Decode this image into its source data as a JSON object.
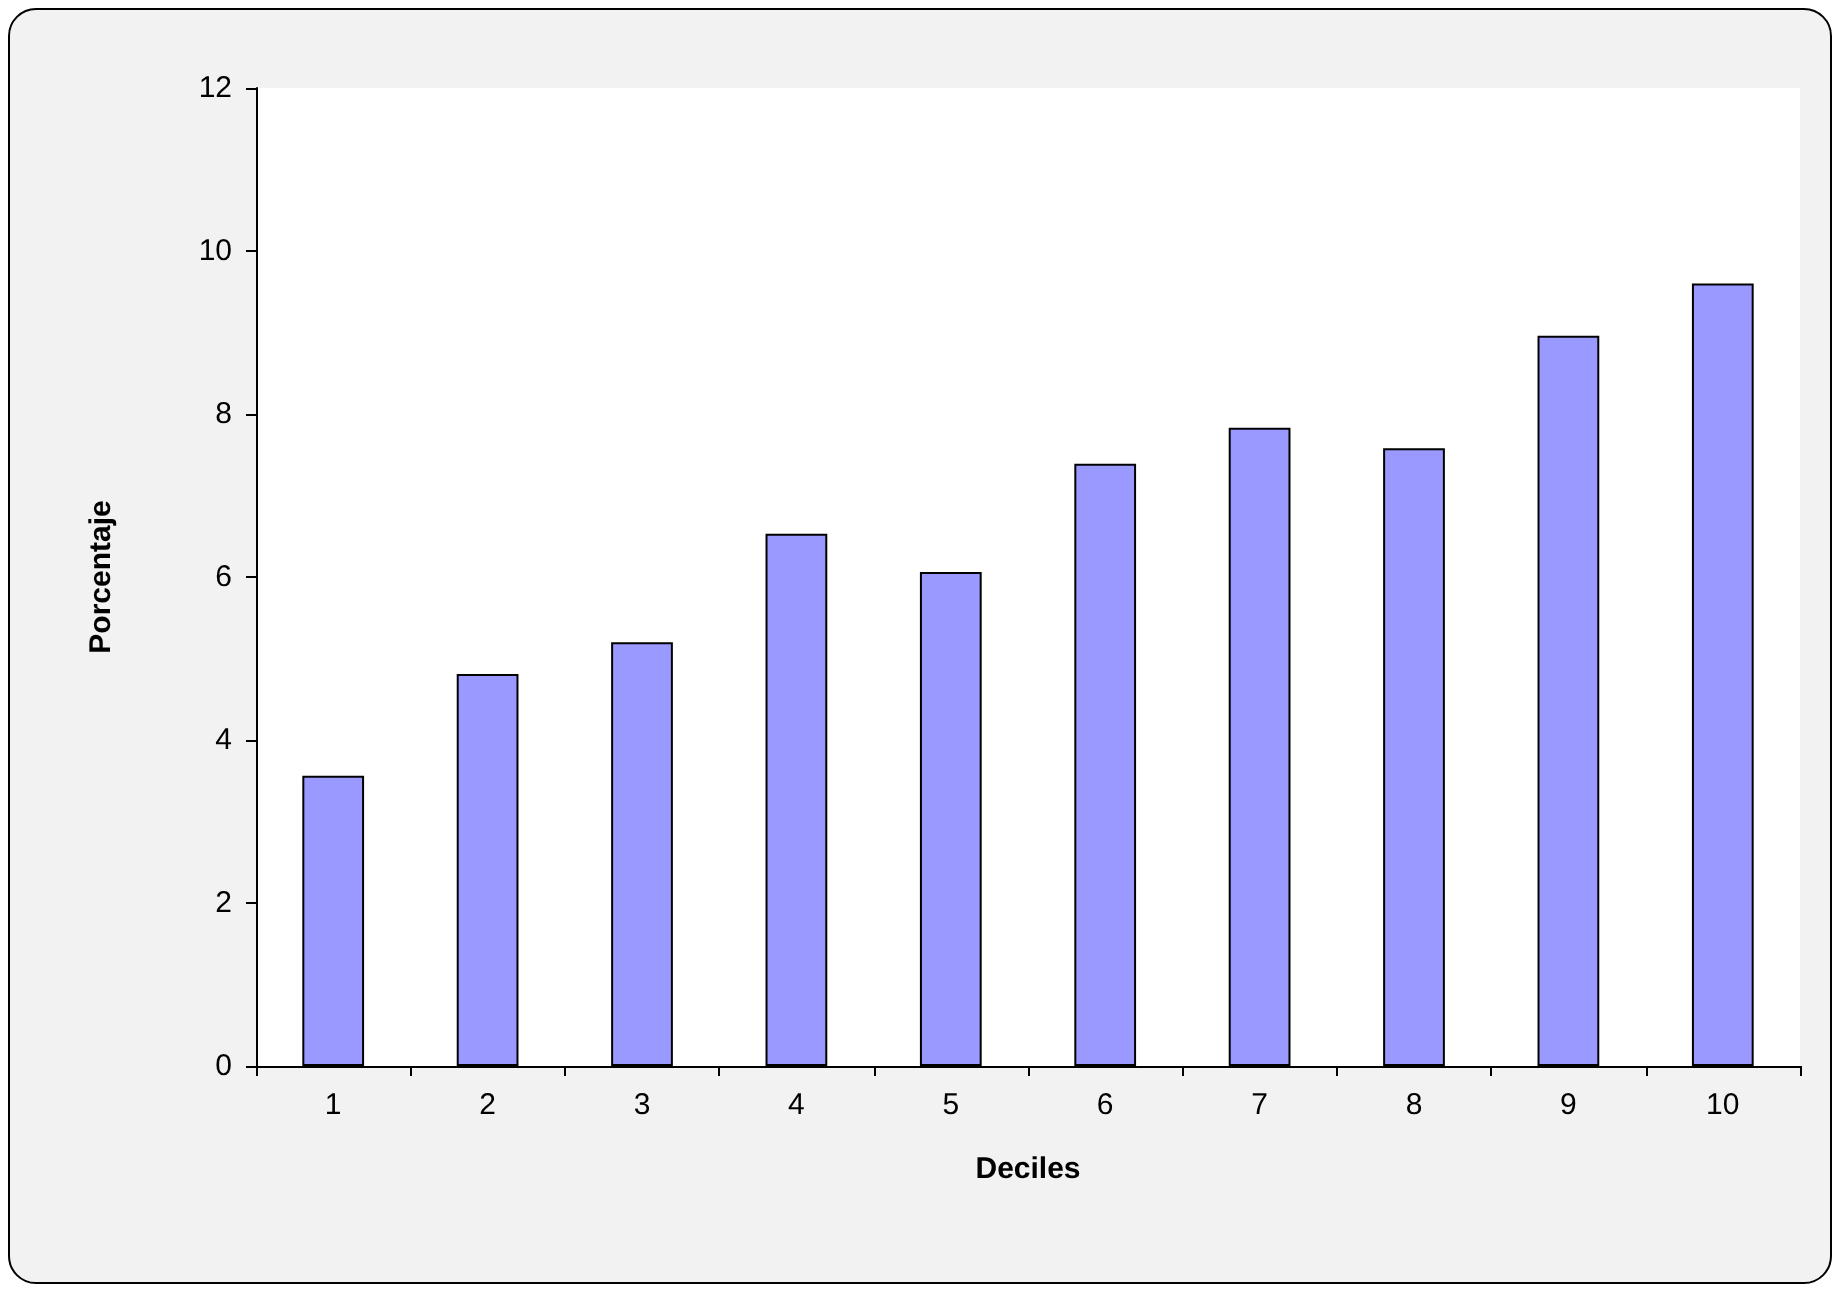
{
  "chart_data": {
    "type": "bar",
    "xlabel": "Deciles",
    "ylabel": "Porcentaje",
    "categories": [
      "1",
      "2",
      "3",
      "4",
      "5",
      "6",
      "7",
      "8",
      "9",
      "10"
    ],
    "values": [
      3.56,
      4.81,
      5.2,
      6.53,
      6.06,
      7.39,
      7.83,
      7.58,
      8.96,
      9.6
    ],
    "color": "#9999ff",
    "ylim": [
      0,
      12
    ],
    "yticks": [
      0,
      2,
      4,
      6,
      8,
      10,
      12
    ],
    "grid": false
  }
}
